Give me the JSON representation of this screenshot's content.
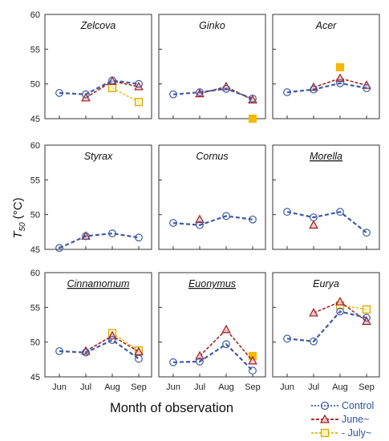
{
  "chart_data": {
    "type": "line",
    "months": [
      "Jun",
      "Jul",
      "Aug",
      "Sep"
    ],
    "ylim": [
      45,
      60
    ],
    "yticks": [
      45,
      50,
      55,
      60
    ],
    "ylabel_main": "T",
    "ylabel_sub": "50",
    "ylabel_unit": " (°C)",
    "xlabel": "Month of observation",
    "legend": [
      {
        "name": "Control",
        "color": "#3f5aa6",
        "marker": "circle"
      },
      {
        "name": "June~",
        "color": "#9e1a1a",
        "marker": "triangle"
      },
      {
        "name": "July~",
        "color": "#e0b800",
        "marker": "square"
      }
    ],
    "panels": [
      {
        "title": "Zelcova",
        "underlined": false,
        "control": [
          [
            0,
            48.7
          ],
          [
            1,
            48.5
          ],
          [
            2,
            50.5
          ],
          [
            3,
            50.0
          ]
        ],
        "june": [
          [
            1,
            48.0
          ],
          [
            2,
            50.4
          ],
          [
            3,
            49.6
          ]
        ],
        "july": [
          [
            2,
            49.4
          ],
          [
            3,
            47.4
          ]
        ]
      },
      {
        "title": "Ginko",
        "underlined": false,
        "control": [
          [
            0,
            48.5
          ],
          [
            1,
            48.8
          ],
          [
            2,
            49.3
          ],
          [
            3,
            47.9
          ]
        ],
        "june": [
          [
            1,
            48.6
          ],
          [
            2,
            49.6
          ],
          [
            3,
            47.7
          ]
        ],
        "july": [
          [
            3,
            45.0
          ]
        ]
      },
      {
        "title": "Acer",
        "underlined": false,
        "control": [
          [
            0,
            48.8
          ],
          [
            1,
            49.2
          ],
          [
            2,
            50.1
          ],
          [
            3,
            49.4
          ]
        ],
        "june": [
          [
            1,
            49.5
          ],
          [
            2,
            50.8
          ],
          [
            3,
            49.8
          ]
        ],
        "july": [
          [
            2,
            52.4
          ]
        ]
      },
      {
        "title": "Styrax",
        "underlined": false,
        "control": [
          [
            0,
            45.2
          ],
          [
            1,
            46.9
          ],
          [
            2,
            47.3
          ],
          [
            3,
            46.7
          ]
        ],
        "june": [
          [
            1,
            46.9
          ]
        ],
        "july": []
      },
      {
        "title": "Cornus",
        "underlined": false,
        "control": [
          [
            0,
            48.8
          ],
          [
            1,
            48.5
          ],
          [
            2,
            49.8
          ],
          [
            3,
            49.3
          ]
        ],
        "june": [
          [
            1,
            49.3
          ]
        ],
        "july": []
      },
      {
        "title": "Morella",
        "underlined": true,
        "control": [
          [
            0,
            50.4
          ],
          [
            1,
            49.6
          ],
          [
            2,
            50.4
          ],
          [
            3,
            47.4
          ]
        ],
        "june": [
          [
            1,
            48.5
          ]
        ],
        "july": []
      },
      {
        "title": "Cinnamomum",
        "underlined": true,
        "control": [
          [
            0,
            48.7
          ],
          [
            1,
            48.5
          ],
          [
            2,
            50.3
          ],
          [
            3,
            47.6
          ]
        ],
        "june": [
          [
            1,
            48.7
          ],
          [
            2,
            50.9
          ],
          [
            3,
            48.6
          ]
        ],
        "july": [
          [
            2,
            51.3
          ],
          [
            3,
            48.8
          ]
        ]
      },
      {
        "title": "Euonymus",
        "underlined": true,
        "control": [
          [
            0,
            47.1
          ],
          [
            1,
            47.2
          ],
          [
            2,
            49.7
          ],
          [
            3,
            45.9
          ]
        ],
        "june": [
          [
            1,
            48.0
          ],
          [
            2,
            51.8
          ],
          [
            3,
            47.3
          ]
        ],
        "july": [
          [
            3,
            48.0
          ]
        ]
      },
      {
        "title": "Eurya",
        "underlined": false,
        "control": [
          [
            0,
            50.5
          ],
          [
            1,
            50.1
          ],
          [
            2,
            54.4
          ],
          [
            3,
            53.5
          ]
        ],
        "june": [
          [
            1,
            54.2
          ],
          [
            2,
            55.8
          ],
          [
            3,
            53.0
          ]
        ],
        "july": [
          [
            2,
            55.3
          ],
          [
            3,
            54.7
          ]
        ]
      }
    ]
  }
}
